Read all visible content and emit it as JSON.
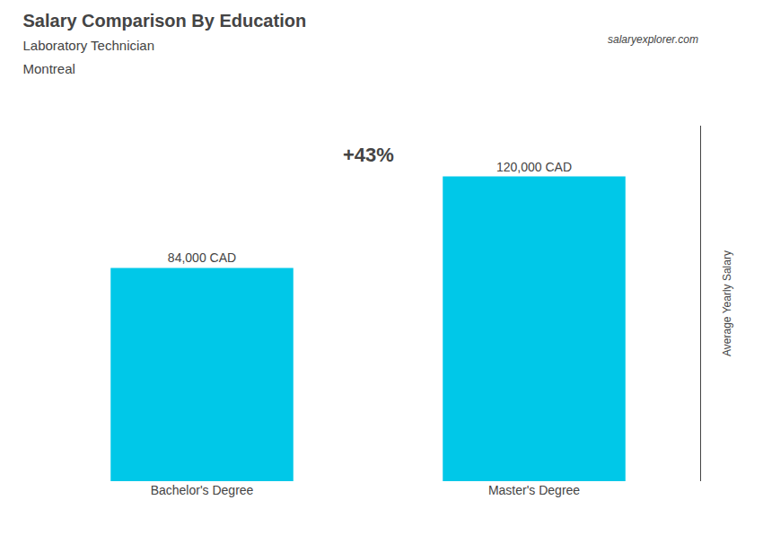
{
  "chart_data": {
    "type": "bar",
    "title": "Salary Comparison By Education",
    "subtitle": [
      "Laboratory Technician",
      "Montreal"
    ],
    "ylabel": "Average Yearly Salary",
    "categories": [
      "Bachelor's Degree",
      "Master's Degree"
    ],
    "values": [
      84000,
      120000
    ],
    "value_labels": [
      "84,000 CAD",
      "120,000 CAD"
    ],
    "color": "#00c8e8",
    "ylim": [
      0,
      140000
    ],
    "grid": false,
    "data_labels": true,
    "tick_labels": "x",
    "annotations": [
      "+43%",
      "salaryexplorer.com"
    ]
  }
}
